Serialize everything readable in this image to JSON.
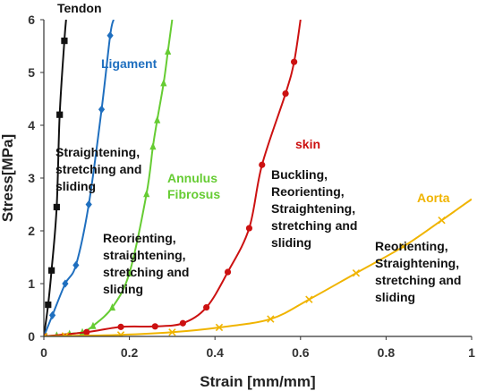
{
  "chart_data": {
    "type": "line",
    "xlabel": "Strain [mm/mm]",
    "ylabel": "Stress[MPa]",
    "xlim": [
      0,
      1
    ],
    "ylim": [
      0,
      6
    ],
    "x_ticks": [
      "0",
      "0.2",
      "0.4",
      "0.6",
      "0.8",
      "1"
    ],
    "y_ticks": [
      "0",
      "1",
      "2",
      "3",
      "4",
      "5",
      "6"
    ],
    "grid": false,
    "series": [
      {
        "name": "Tendon",
        "color": "#111111",
        "marker": "square",
        "x": [
          0.0,
          0.01,
          0.018,
          0.03,
          0.037,
          0.048
        ],
        "y": [
          0.0,
          0.6,
          1.25,
          2.45,
          4.2,
          5.6
        ]
      },
      {
        "name": "Ligament",
        "color": "#1f6fbf",
        "marker": "diamond",
        "x": [
          0.0,
          0.02,
          0.05,
          0.075,
          0.105,
          0.135,
          0.155
        ],
        "y": [
          0.0,
          0.4,
          1.0,
          1.35,
          2.5,
          4.3,
          5.7
        ]
      },
      {
        "name": "Annulus Fibrosus",
        "color": "#66cc33",
        "marker": "triangle",
        "x": [
          0.0,
          0.03,
          0.06,
          0.09,
          0.115,
          0.16,
          0.2,
          0.24,
          0.255,
          0.265,
          0.28,
          0.29
        ],
        "y": [
          0.0,
          0.02,
          0.05,
          0.08,
          0.2,
          0.55,
          1.2,
          2.7,
          3.6,
          4.1,
          4.8,
          5.4
        ]
      },
      {
        "name": "skin",
        "color": "#cc1111",
        "marker": "circle",
        "x": [
          0.0,
          0.1,
          0.18,
          0.26,
          0.325,
          0.38,
          0.43,
          0.48,
          0.51,
          0.565,
          0.585
        ],
        "y": [
          0.0,
          0.08,
          0.18,
          0.19,
          0.25,
          0.55,
          1.22,
          2.05,
          3.25,
          4.6,
          5.2
        ]
      },
      {
        "name": "Aorta",
        "color": "#f0b400",
        "marker": "x",
        "x": [
          0.0,
          0.05,
          0.18,
          0.3,
          0.41,
          0.53,
          0.62,
          0.73,
          0.84,
          0.93
        ],
        "y": [
          0.0,
          0.01,
          0.03,
          0.08,
          0.17,
          0.33,
          0.7,
          1.2,
          1.7,
          2.2
        ]
      }
    ],
    "series_labels": [
      "Tendon",
      "Ligament",
      "Annulus\nFibrosus",
      "skin",
      "Aorta"
    ],
    "annotations": [
      "Straightening,\nstretching and\nsliding",
      "Reorienting,\nstraightening,\nstretching and\nsliding",
      "Buckling,\nReorienting,\nStraightening,\nstretching and\nsliding",
      "Reorienting,\nStraightening,\nstretching and\nsliding"
    ]
  }
}
